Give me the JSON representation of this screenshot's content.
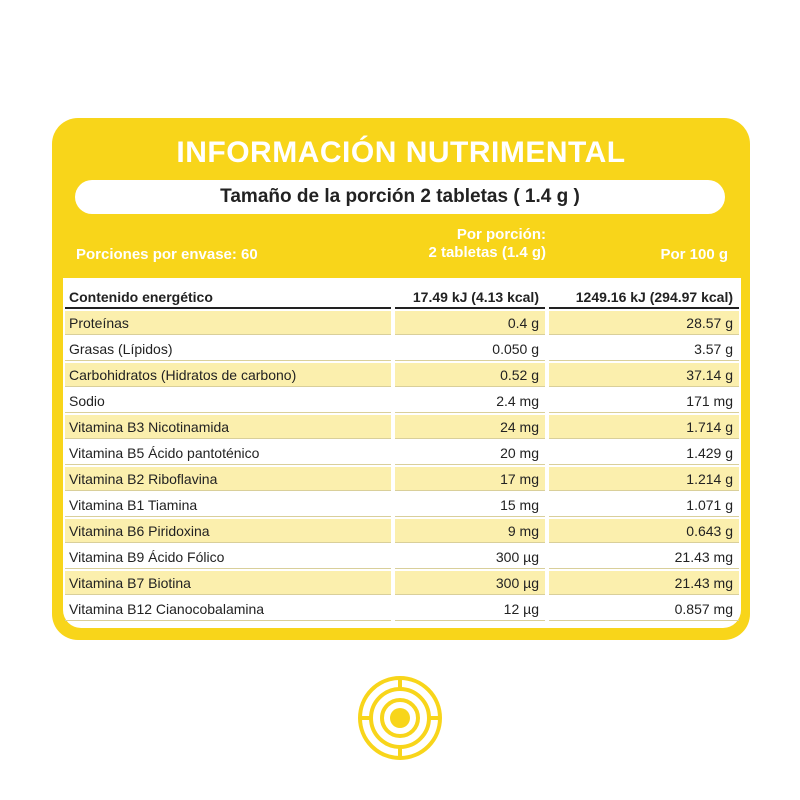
{
  "title": "INFORMACIÓN NUTRIMENTAL",
  "serving_size": "Tamaño de la porción 2 tabletas ( 1.4 g )",
  "header": {
    "servings": "Porciones por envase: 60",
    "per_portion": [
      "Por porción:",
      "2 tabletas (1.4 g)"
    ],
    "per_100g": "Por 100 g"
  },
  "table": {
    "rows": [
      [
        "Contenido energético",
        "17.49 kJ (4.13 kcal)",
        "1249.16 kJ (294.97 kcal)"
      ],
      [
        "Proteínas",
        "0.4 g",
        "28.57 g"
      ],
      [
        "Grasas (Lípidos)",
        "0.050 g",
        "3.57 g"
      ],
      [
        "Carbohidratos (Hidratos de carbono)",
        "0.52 g",
        "37.14 g"
      ],
      [
        "Sodio",
        "2.4 mg",
        "171 mg"
      ],
      [
        "Vitamina B3 Nicotinamida",
        "24 mg",
        "1.714 g"
      ],
      [
        "Vitamina B5 Ácido pantoténico",
        "20 mg",
        "1.429 g"
      ],
      [
        "Vitamina B2 Riboflavina",
        "17 mg",
        "1.214 g"
      ],
      [
        "Vitamina B1 Tiamina",
        "15 mg",
        "1.071 g"
      ],
      [
        "Vitamina B6 Piridoxina",
        "9 mg",
        "0.643 g"
      ],
      [
        "Vitamina B9 Ácido Fólico",
        "300 µg",
        "21.43 mg"
      ],
      [
        "Vitamina B7 Biotina",
        "300 µg",
        "21.43 mg"
      ],
      [
        "Vitamina B12 Cianocobalamina",
        "12 µg",
        "0.857 mg"
      ]
    ]
  }
}
